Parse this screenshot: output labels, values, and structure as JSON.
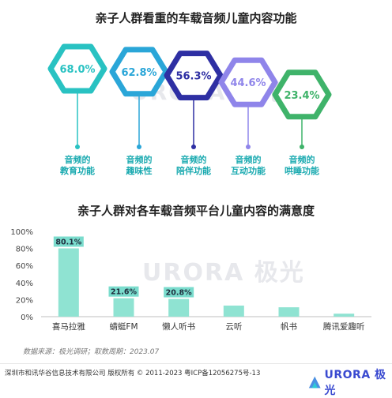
{
  "top_title": "亲子人群看重的车载音频儿童内容功能",
  "bottom_title": "亲子人群对各车载音频平台儿童内容的满意度",
  "watermark": "URORA 极光",
  "chart_data": [
    {
      "type": "bar",
      "title": "亲子人群看重的车载音频儿童内容功能",
      "categories": [
        "音频的教育功能",
        "音频的趣味性",
        "音频的陪伴功能",
        "音频的互动功能",
        "音频的哄睡功能"
      ],
      "label_lines": [
        [
          "音频的",
          "教育功能"
        ],
        [
          "音频的",
          "趣味性"
        ],
        [
          "音频的",
          "陪伴功能"
        ],
        [
          "音频的",
          "互动功能"
        ],
        [
          "音频的",
          "哄睡功能"
        ]
      ],
      "values": [
        68.0,
        62.8,
        56.3,
        44.6,
        23.4
      ],
      "value_labels": [
        "68.0%",
        "62.8%",
        "56.3%",
        "44.6%",
        "23.4%"
      ],
      "colors": [
        "#29c2c2",
        "#2aa6d8",
        "#2e2fa3",
        "#8f85ea",
        "#3fb36a"
      ],
      "label_color": "#1aaab0"
    },
    {
      "type": "bar",
      "title": "亲子人群对各车载音频平台儿童内容的满意度",
      "categories": [
        "喜马拉雅",
        "蜻蜓FM",
        "懒人听书",
        "云听",
        "帆书",
        "腾讯爱趣听"
      ],
      "values": [
        80.1,
        21.6,
        20.8,
        13.0,
        11.0,
        3.5
      ],
      "value_labels": [
        "80.1%",
        "21.6%",
        "20.8%",
        "",
        "",
        ""
      ],
      "ylim": [
        0,
        100
      ],
      "yticks": [
        "0%",
        "20%",
        "40%",
        "60%",
        "80%",
        "100%"
      ],
      "bar_color": "#8fe3d2",
      "label_bg": "#7adccd"
    }
  ],
  "source": "数据来源：极光调研；取数周期：2023.07",
  "footer": {
    "copyright": "深圳市和讯华谷信息技术有限公司 版权所有 © 2011-2023 粤ICP备12056275号-13",
    "logo_text": "URORA 极光"
  }
}
